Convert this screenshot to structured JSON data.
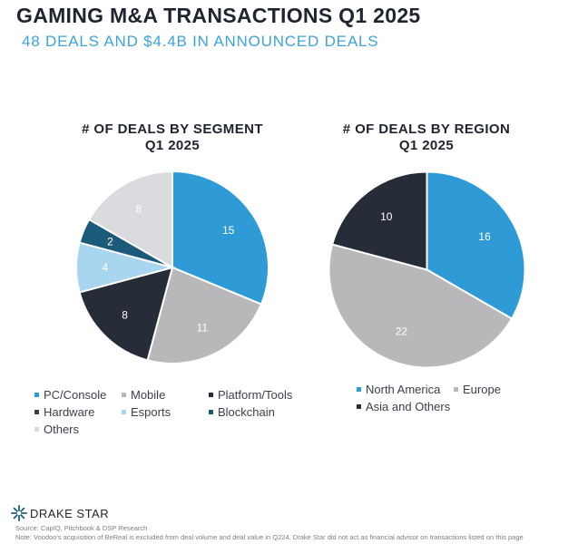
{
  "header": {
    "title": "GAMING M&A TRANSACTIONS Q1 2025",
    "subtitle": "48 DEALS AND $4.4B IN ANNOUNCED DEALS"
  },
  "chart_data": [
    {
      "type": "pie",
      "title": "# OF DEALS BY SEGMENT",
      "subtitle": "Q1 2025",
      "categories": [
        "PC/Console",
        "Mobile",
        "Platform/Tools",
        "Hardware",
        "Esports",
        "Blockchain",
        "Others"
      ],
      "values": [
        15,
        11,
        8,
        0,
        4,
        2,
        8
      ],
      "colors": [
        "#2e9bd6",
        "#b8b8bb",
        "#262c38",
        "#3b3f48",
        "#a8d6ee",
        "#1b5a78",
        "#d9dbde"
      ],
      "legend": "bottom"
    },
    {
      "type": "pie",
      "title": "# OF DEALS BY REGION",
      "subtitle": "Q1 2025",
      "categories": [
        "North America",
        "Europe",
        "Asia and Others"
      ],
      "values": [
        16,
        22,
        10
      ],
      "colors": [
        "#2e9bd6",
        "#b8b8bb",
        "#262c38"
      ],
      "legend": "bottom"
    }
  ],
  "footer": {
    "brand": "DRAKE STAR",
    "source": "Source: CapIQ, Pitchbook & DSP Research",
    "note": "Note: Voodoo's acquisition of BeReal is excluded from deal volume and deal value in Q224. Drake Star did not act as financial advisor on transactions listed on this page"
  }
}
